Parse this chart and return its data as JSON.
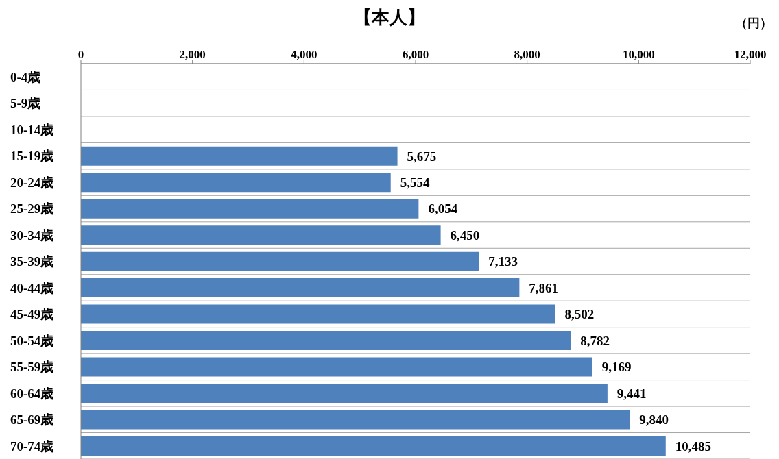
{
  "chart_data": {
    "type": "bar",
    "orientation": "horizontal",
    "title": "【本人】",
    "xlabel": "（円）",
    "categories": [
      "0-4歳",
      "5-9歳",
      "10-14歳",
      "15-19歳",
      "20-24歳",
      "25-29歳",
      "30-34歳",
      "35-39歳",
      "40-44歳",
      "45-49歳",
      "50-54歳",
      "55-59歳",
      "60-64歳",
      "65-69歳",
      "70-74歳"
    ],
    "values": [
      null,
      null,
      null,
      5675,
      5554,
      6054,
      6450,
      7133,
      7861,
      8502,
      8782,
      9169,
      9441,
      9840,
      10485
    ],
    "value_labels": [
      null,
      null,
      null,
      "5,675",
      "5,554",
      "6,054",
      "6,450",
      "7,133",
      "7,861",
      "8,502",
      "8,782",
      "9,169",
      "9,441",
      "9,840",
      "10,485"
    ],
    "color": "#4f81bd",
    "xlim": [
      0,
      12000
    ],
    "xticks": [
      0,
      {
        "value": 2000,
        "label": "2,000"
      },
      {
        "value": 4000,
        "label": "4,000"
      },
      {
        "value": 6000,
        "label": "6,000"
      },
      {
        "value": 8000,
        "label": "8,000"
      },
      {
        "value": 10000,
        "label": "10,000"
      },
      {
        "value": 12000,
        "label": "12,000"
      }
    ],
    "grid": "y"
  }
}
